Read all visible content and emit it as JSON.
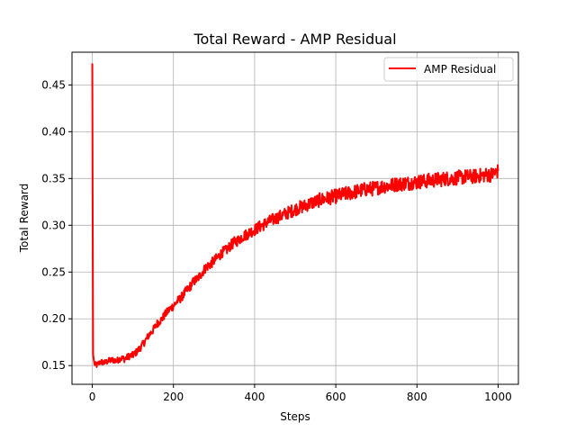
{
  "chart_data": {
    "type": "line",
    "title": "Total Reward - AMP Residual",
    "xlabel": "Steps",
    "ylabel": "Total Reward",
    "xlim": [
      -50,
      1050
    ],
    "ylim": [
      0.13,
      0.485
    ],
    "x_ticks": [
      0,
      200,
      400,
      600,
      800,
      1000
    ],
    "y_ticks": [
      0.15,
      0.2,
      0.25,
      0.3,
      0.35,
      0.4,
      0.45
    ],
    "x_tick_labels": [
      "0",
      "200",
      "400",
      "600",
      "800",
      "1000"
    ],
    "y_tick_labels": [
      "0.15",
      "0.20",
      "0.25",
      "0.30",
      "0.35",
      "0.40",
      "0.45"
    ],
    "grid": true,
    "legend": {
      "position": "top-right",
      "entries": [
        "AMP Residual"
      ]
    },
    "colors": {
      "series": "#ff0000",
      "grid": "#b0b0b0",
      "axes": "#000000"
    },
    "series": [
      {
        "name": "AMP Residual",
        "x": [
          0,
          1,
          2,
          5,
          10,
          20,
          30,
          40,
          50,
          60,
          70,
          80,
          90,
          100,
          110,
          120,
          130,
          140,
          150,
          160,
          170,
          180,
          190,
          200,
          210,
          220,
          230,
          240,
          250,
          260,
          270,
          280,
          290,
          300,
          310,
          320,
          330,
          340,
          350,
          360,
          370,
          380,
          390,
          400,
          410,
          420,
          430,
          440,
          450,
          460,
          470,
          480,
          490,
          500,
          510,
          520,
          530,
          540,
          550,
          560,
          570,
          580,
          590,
          600,
          610,
          620,
          630,
          640,
          650,
          660,
          670,
          680,
          690,
          700,
          710,
          720,
          730,
          740,
          750,
          760,
          770,
          780,
          790,
          800,
          810,
          820,
          830,
          840,
          850,
          860,
          870,
          880,
          890,
          900,
          910,
          920,
          930,
          940,
          950,
          960,
          970,
          980,
          990,
          1000
        ],
        "y": [
          0.473,
          0.3,
          0.162,
          0.152,
          0.15,
          0.154,
          0.153,
          0.155,
          0.156,
          0.155,
          0.158,
          0.157,
          0.16,
          0.161,
          0.165,
          0.17,
          0.176,
          0.183,
          0.188,
          0.195,
          0.199,
          0.205,
          0.21,
          0.214,
          0.219,
          0.223,
          0.229,
          0.234,
          0.24,
          0.243,
          0.249,
          0.255,
          0.258,
          0.262,
          0.266,
          0.271,
          0.273,
          0.278,
          0.282,
          0.284,
          0.288,
          0.29,
          0.293,
          0.295,
          0.298,
          0.3,
          0.303,
          0.305,
          0.307,
          0.309,
          0.311,
          0.313,
          0.315,
          0.317,
          0.319,
          0.32,
          0.322,
          0.324,
          0.325,
          0.327,
          0.328,
          0.329,
          0.33,
          0.331,
          0.332,
          0.333,
          0.334,
          0.335,
          0.336,
          0.337,
          0.338,
          0.339,
          0.339,
          0.34,
          0.341,
          0.342,
          0.342,
          0.343,
          0.344,
          0.344,
          0.345,
          0.345,
          0.346,
          0.346,
          0.347,
          0.347,
          0.348,
          0.348,
          0.349,
          0.349,
          0.35,
          0.35,
          0.35,
          0.351,
          0.351,
          0.352,
          0.352,
          0.352,
          0.353,
          0.353,
          0.354,
          0.354,
          0.355,
          0.358
        ],
        "noise": 0.006
      }
    ]
  }
}
